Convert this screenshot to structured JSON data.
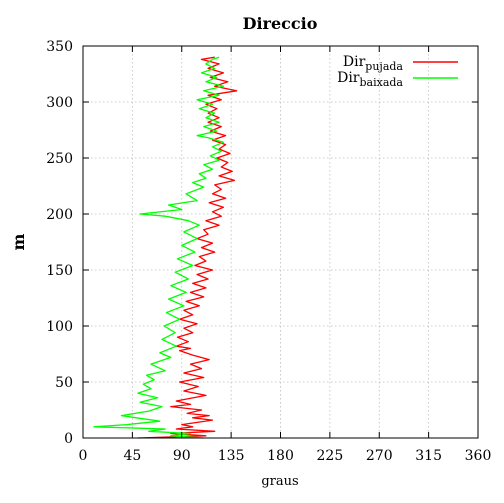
{
  "chart_data": {
    "type": "line",
    "title": "Direccio",
    "xlabel": "graus",
    "ylabel": "m",
    "xlim": [
      0,
      360
    ],
    "ylim": [
      0,
      350
    ],
    "xticks": [
      0,
      45,
      90,
      135,
      180,
      225,
      270,
      315,
      360
    ],
    "yticks": [
      0,
      50,
      100,
      150,
      200,
      250,
      300,
      350
    ],
    "grid": true,
    "legend_position": "top-right",
    "series": [
      {
        "name": "Dir",
        "name_subscript": "pujada",
        "color": "#ff0000",
        "points": [
          [
            50,
            0
          ],
          [
            112,
            2
          ],
          [
            80,
            4
          ],
          [
            120,
            6
          ],
          [
            85,
            8
          ],
          [
            100,
            10
          ],
          [
            90,
            12
          ],
          [
            118,
            16
          ],
          [
            100,
            18
          ],
          [
            115,
            20
          ],
          [
            95,
            22
          ],
          [
            108,
            25
          ],
          [
            80,
            28
          ],
          [
            98,
            30
          ],
          [
            85,
            33
          ],
          [
            112,
            38
          ],
          [
            92,
            42
          ],
          [
            105,
            46
          ],
          [
            88,
            50
          ],
          [
            110,
            54
          ],
          [
            92,
            58
          ],
          [
            108,
            62
          ],
          [
            98,
            66
          ],
          [
            115,
            70
          ],
          [
            100,
            74
          ],
          [
            88,
            78
          ],
          [
            98,
            80
          ],
          [
            85,
            82
          ],
          [
            96,
            86
          ],
          [
            86,
            90
          ],
          [
            100,
            94
          ],
          [
            92,
            98
          ],
          [
            104,
            102
          ],
          [
            88,
            106
          ],
          [
            100,
            110
          ],
          [
            92,
            114
          ],
          [
            106,
            118
          ],
          [
            94,
            122
          ],
          [
            110,
            126
          ],
          [
            98,
            130
          ],
          [
            112,
            134
          ],
          [
            100,
            138
          ],
          [
            114,
            142
          ],
          [
            104,
            146
          ],
          [
            118,
            150
          ],
          [
            102,
            154
          ],
          [
            112,
            158
          ],
          [
            106,
            162
          ],
          [
            120,
            166
          ],
          [
            108,
            170
          ],
          [
            118,
            174
          ],
          [
            104,
            178
          ],
          [
            114,
            182
          ],
          [
            110,
            186
          ],
          [
            124,
            190
          ],
          [
            112,
            194
          ],
          [
            126,
            198
          ],
          [
            118,
            202
          ],
          [
            128,
            206
          ],
          [
            115,
            210
          ],
          [
            130,
            214
          ],
          [
            118,
            218
          ],
          [
            126,
            222
          ],
          [
            120,
            226
          ],
          [
            138,
            230
          ],
          [
            124,
            234
          ],
          [
            136,
            238
          ],
          [
            126,
            242
          ],
          [
            132,
            246
          ],
          [
            122,
            250
          ],
          [
            134,
            254
          ],
          [
            124,
            258
          ],
          [
            130,
            262
          ],
          [
            118,
            266
          ],
          [
            130,
            270
          ],
          [
            116,
            274
          ],
          [
            126,
            278
          ],
          [
            114,
            282
          ],
          [
            124,
            286
          ],
          [
            114,
            290
          ],
          [
            122,
            294
          ],
          [
            112,
            298
          ],
          [
            126,
            302
          ],
          [
            114,
            306
          ],
          [
            140,
            310
          ],
          [
            120,
            314
          ],
          [
            132,
            318
          ],
          [
            116,
            322
          ],
          [
            128,
            326
          ],
          [
            114,
            330
          ],
          [
            124,
            334
          ],
          [
            108,
            338
          ],
          [
            120,
            340
          ]
        ]
      },
      {
        "name": "Dir",
        "name_subscript": "baixada",
        "color": "#00ff00",
        "points": [
          [
            110,
            0
          ],
          [
            80,
            2
          ],
          [
            98,
            4
          ],
          [
            60,
            6
          ],
          [
            75,
            8
          ],
          [
            10,
            10
          ],
          [
            40,
            12
          ],
          [
            70,
            15
          ],
          [
            35,
            20
          ],
          [
            60,
            24
          ],
          [
            72,
            28
          ],
          [
            52,
            32
          ],
          [
            68,
            36
          ],
          [
            50,
            40
          ],
          [
            62,
            44
          ],
          [
            55,
            48
          ],
          [
            65,
            52
          ],
          [
            58,
            56
          ],
          [
            75,
            60
          ],
          [
            62,
            66
          ],
          [
            80,
            72
          ],
          [
            70,
            76
          ],
          [
            85,
            82
          ],
          [
            72,
            88
          ],
          [
            84,
            94
          ],
          [
            74,
            100
          ],
          [
            88,
            106
          ],
          [
            76,
            112
          ],
          [
            92,
            118
          ],
          [
            78,
            124
          ],
          [
            94,
            130
          ],
          [
            80,
            136
          ],
          [
            96,
            142
          ],
          [
            84,
            148
          ],
          [
            100,
            154
          ],
          [
            86,
            160
          ],
          [
            102,
            166
          ],
          [
            90,
            172
          ],
          [
            104,
            178
          ],
          [
            92,
            184
          ],
          [
            106,
            190
          ],
          [
            96,
            194
          ],
          [
            75,
            198
          ],
          [
            52,
            200
          ],
          [
            90,
            204
          ],
          [
            78,
            208
          ],
          [
            104,
            212
          ],
          [
            94,
            218
          ],
          [
            110,
            224
          ],
          [
            100,
            228
          ],
          [
            112,
            232
          ],
          [
            106,
            236
          ],
          [
            118,
            240
          ],
          [
            110,
            244
          ],
          [
            124,
            248
          ],
          [
            116,
            252
          ],
          [
            126,
            256
          ],
          [
            118,
            260
          ],
          [
            128,
            264
          ],
          [
            114,
            268
          ],
          [
            104,
            270
          ],
          [
            122,
            274
          ],
          [
            110,
            278
          ],
          [
            124,
            282
          ],
          [
            112,
            286
          ],
          [
            120,
            290
          ],
          [
            106,
            294
          ],
          [
            118,
            298
          ],
          [
            104,
            302
          ],
          [
            124,
            306
          ],
          [
            110,
            310
          ],
          [
            128,
            314
          ],
          [
            112,
            318
          ],
          [
            122,
            322
          ],
          [
            108,
            326
          ],
          [
            120,
            330
          ],
          [
            112,
            334
          ],
          [
            118,
            338
          ],
          [
            124,
            340
          ]
        ]
      }
    ]
  }
}
